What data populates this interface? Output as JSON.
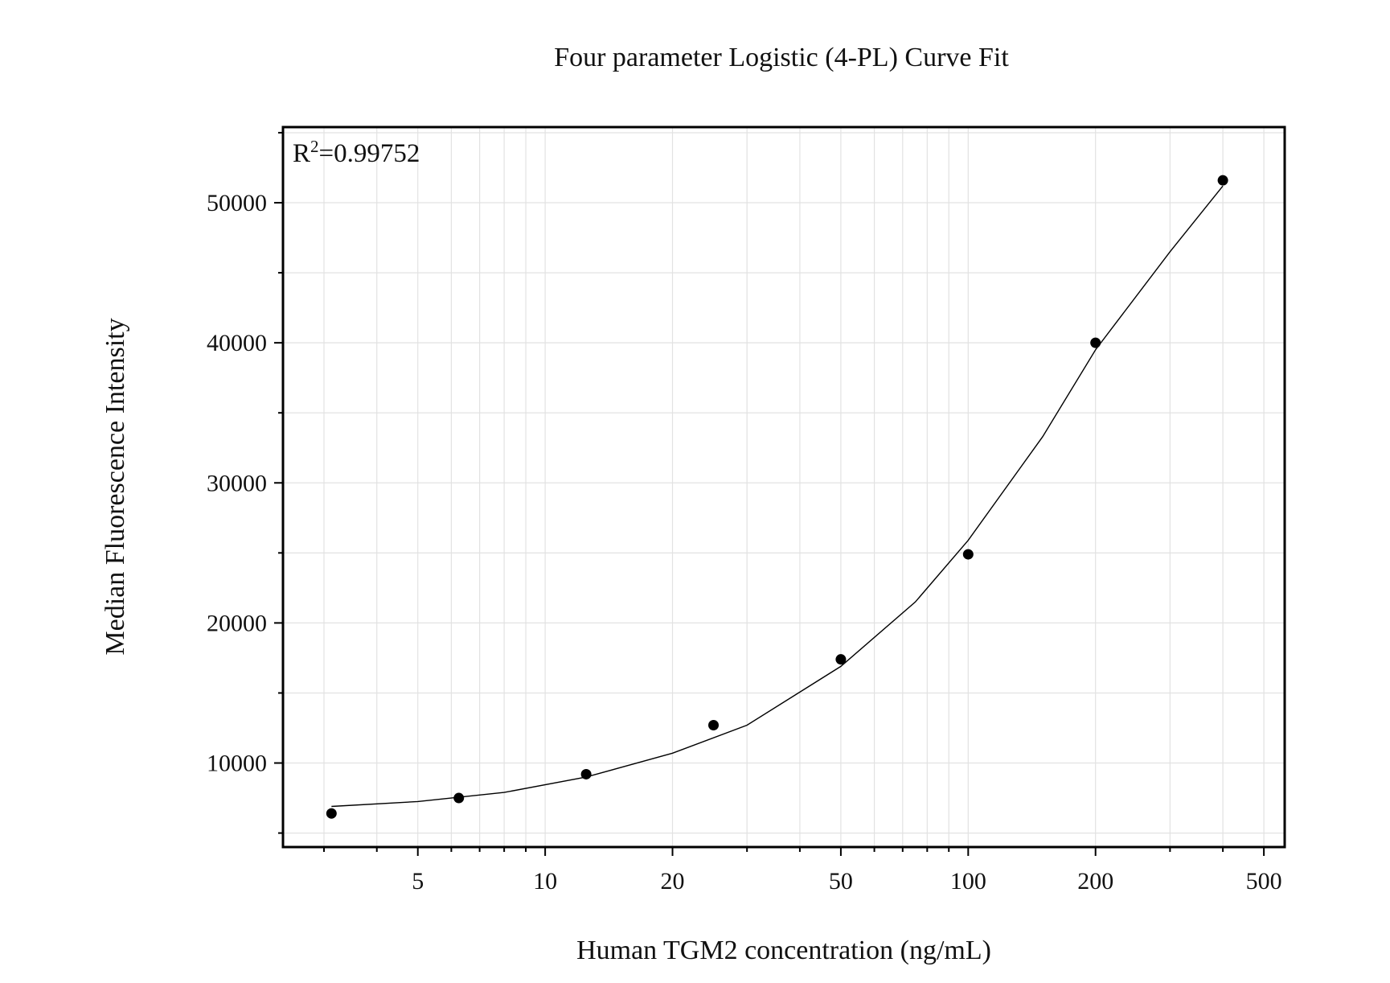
{
  "chart_data": {
    "type": "scatter",
    "title": "Four parameter Logistic (4-PL) Curve Fit",
    "xlabel": "Human TGM2 concentration (ng/mL)",
    "ylabel": "Median Fluorescence Intensity",
    "x_scale": "log",
    "xlim": [
      2.4,
      560
    ],
    "ylim": [
      4000,
      55400
    ],
    "x_ticks": [
      5,
      10,
      20,
      50,
      100,
      200,
      500
    ],
    "x_tick_labels": [
      "5",
      "10",
      "20",
      "50",
      "100",
      "200",
      "500"
    ],
    "y_ticks": [
      10000,
      20000,
      30000,
      40000,
      50000
    ],
    "y_tick_labels": [
      "10000",
      "20000",
      "30000",
      "40000",
      "50000"
    ],
    "grid": true,
    "annotation": {
      "r_label": "R",
      "r_exponent": "2",
      "r_value": "=0.99752"
    },
    "series": [
      {
        "marker": "circle",
        "color": "#000000",
        "x": [
          3.125,
          6.25,
          12.5,
          25,
          50,
          100,
          200,
          400
        ],
        "y": [
          6400,
          7500,
          9200,
          12700,
          17400,
          24900,
          40000,
          51600
        ]
      }
    ],
    "fit": {
      "type": "4PL",
      "color": "#000000",
      "x": [
        3.125,
        5,
        8,
        12.5,
        20,
        30,
        50,
        75,
        100,
        150,
        200,
        300,
        400
      ],
      "y": [
        6900,
        7250,
        7900,
        9000,
        10700,
        12700,
        16900,
        21500,
        25900,
        33300,
        39500,
        46500,
        51200
      ]
    }
  }
}
